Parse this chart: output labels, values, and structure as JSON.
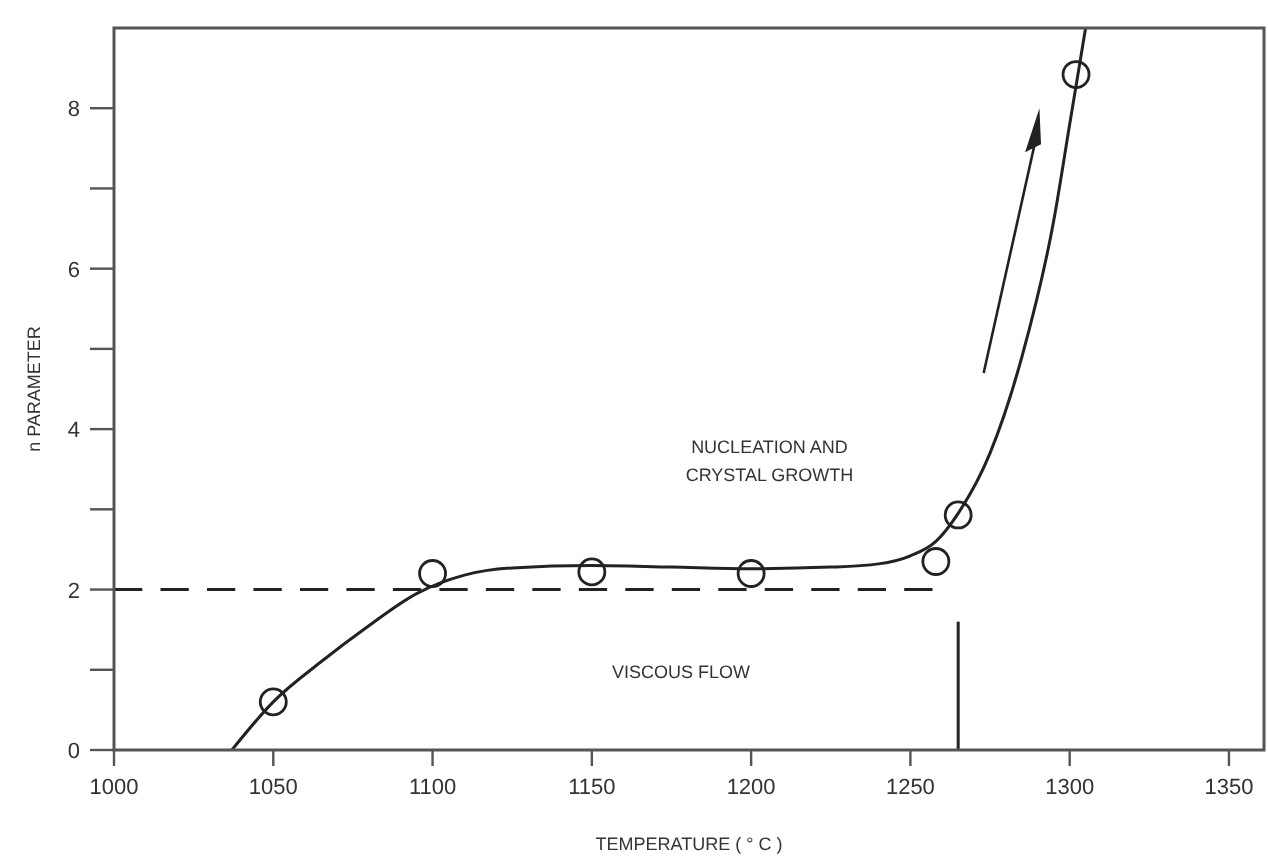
{
  "chart_data": {
    "type": "scatter",
    "xlabel": "TEMPERATURE  ( ° C )",
    "ylabel": "n  PARAMETER",
    "xlim": [
      1000,
      1361
    ],
    "ylim": [
      0,
      9
    ],
    "xticks": [
      1000,
      1050,
      1100,
      1150,
      1200,
      1250,
      1300,
      1350
    ],
    "yticks": [
      0,
      {
        "value": 1,
        "label": null
      },
      2,
      {
        "value": 3,
        "label": null
      },
      4,
      {
        "value": 5,
        "label": null
      },
      6,
      {
        "value": 7,
        "label": null
      },
      8
    ],
    "grid": false,
    "series": [
      {
        "marker": "circle",
        "color": "#222222",
        "x": [
          1050,
          1100,
          1150,
          1200,
          1258,
          1265,
          1302
        ],
        "values": [
          0.6,
          2.2,
          2.22,
          2.2,
          2.35,
          2.93,
          8.42
        ]
      },
      {
        "type": "line",
        "line_style": "solid",
        "color": "#222222",
        "x": [
          1037,
          1050,
          1065,
          1080,
          1095,
          1110,
          1125,
          1150,
          1175,
          1200,
          1225,
          1240,
          1250,
          1258,
          1265,
          1275,
          1285,
          1295,
          1300,
          1305
        ],
        "values": [
          0,
          0.6,
          1.1,
          1.55,
          1.95,
          2.18,
          2.27,
          2.3,
          2.28,
          2.26,
          2.28,
          2.32,
          2.42,
          2.6,
          2.95,
          3.7,
          4.9,
          6.6,
          7.8,
          9.0
        ]
      },
      {
        "type": "line",
        "line_style": "dashed",
        "color": "#222222",
        "x": [
          1000,
          1257
        ],
        "values": [
          2,
          2
        ]
      },
      {
        "type": "line",
        "line_style": "solid",
        "color": "#222222",
        "x": [
          1265,
          1265
        ],
        "values": [
          0,
          1.6
        ]
      }
    ],
    "annotations": [
      "NUCLEATION AND\nCRYSTAL GROWTH",
      "VISCOUS  FLOW"
    ]
  }
}
